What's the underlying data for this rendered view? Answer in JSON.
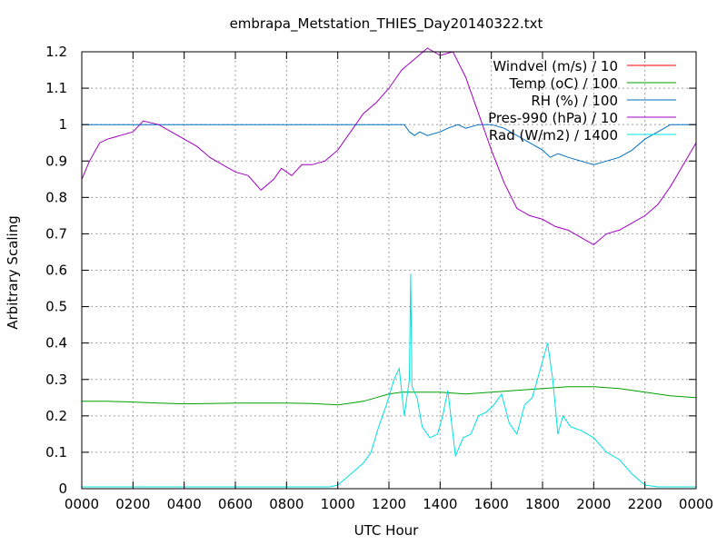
{
  "chart_data": {
    "type": "line",
    "title": "embrapa_Metstation_THIES_Day20140322.txt",
    "xlabel": "UTC Hour",
    "ylabel": "Arbitrary Scaling",
    "xlim": [
      0,
      24
    ],
    "ylim": [
      0,
      1.2
    ],
    "grid": true,
    "legend_position": "top-right",
    "x_ticks": [
      0,
      2,
      4,
      6,
      8,
      10,
      12,
      14,
      16,
      18,
      20,
      22,
      24
    ],
    "x_tick_labels": [
      "0000",
      "0200",
      "0400",
      "0600",
      "0800",
      "1000",
      "1200",
      "1400",
      "1600",
      "1800",
      "2000",
      "2200",
      "0000"
    ],
    "y_ticks": [
      0,
      0.1,
      0.2,
      0.3,
      0.4,
      0.5,
      0.6,
      0.7,
      0.8,
      0.9,
      1,
      1.1,
      1.2
    ],
    "y_tick_labels": [
      "0",
      "0.1",
      "0.2",
      "0.3",
      "0.4",
      "0.5",
      "0.6",
      "0.7",
      "0.8",
      "0.9",
      "1",
      "1.1",
      "1.2"
    ],
    "series": [
      {
        "name": "Windvel (m/s) / 10",
        "color": "#ff0000",
        "x": [],
        "y": []
      },
      {
        "name": "Temp (oC) / 100",
        "color": "#00a000",
        "x": [
          0,
          1,
          2,
          3,
          4,
          5,
          6,
          7,
          8,
          9,
          10,
          11,
          11.5,
          12,
          12.5,
          13,
          14,
          15,
          16,
          17,
          18,
          19,
          20,
          21,
          22,
          23,
          24
        ],
        "y": [
          0.24,
          0.24,
          0.238,
          0.235,
          0.233,
          0.234,
          0.235,
          0.235,
          0.235,
          0.234,
          0.23,
          0.24,
          0.25,
          0.26,
          0.265,
          0.265,
          0.265,
          0.26,
          0.265,
          0.27,
          0.275,
          0.28,
          0.28,
          0.275,
          0.265,
          0.255,
          0.25
        ]
      },
      {
        "name": "RH (%) / 100",
        "color": "#0070c0",
        "x": [
          0,
          12.6,
          12.8,
          13.0,
          13.2,
          13.5,
          14.0,
          14.3,
          14.7,
          15.0,
          15.5,
          16.0,
          16.5,
          17.0,
          17.5,
          18.0,
          18.3,
          18.6,
          19.0,
          19.5,
          20.0,
          20.5,
          21.0,
          21.5,
          22.0,
          22.5,
          23.0,
          24
        ],
        "y": [
          1,
          1,
          0.98,
          0.97,
          0.98,
          0.97,
          0.98,
          0.99,
          1.0,
          0.99,
          1.0,
          1.0,
          0.99,
          0.97,
          0.95,
          0.93,
          0.91,
          0.92,
          0.91,
          0.9,
          0.89,
          0.9,
          0.91,
          0.93,
          0.96,
          0.98,
          1.0,
          1.0
        ]
      },
      {
        "name": "Pres-990 (hPa) / 10",
        "color": "#a000c0",
        "x": [
          0,
          0.3,
          0.7,
          1.0,
          1.5,
          2.0,
          2.4,
          3.0,
          3.5,
          4.0,
          4.5,
          5.0,
          5.5,
          6.0,
          6.5,
          7.0,
          7.5,
          7.8,
          8.2,
          8.6,
          9.0,
          9.5,
          10.0,
          10.5,
          11.0,
          11.5,
          12.0,
          12.5,
          13.0,
          13.5,
          14.0,
          14.5,
          15.0,
          15.5,
          16.0,
          16.5,
          17.0,
          17.5,
          18.0,
          18.5,
          19.0,
          19.5,
          20.0,
          20.5,
          21.0,
          21.5,
          22.0,
          22.5,
          23.0,
          23.5,
          24
        ],
        "y": [
          0.85,
          0.9,
          0.95,
          0.96,
          0.97,
          0.98,
          1.01,
          1.0,
          0.98,
          0.96,
          0.94,
          0.91,
          0.89,
          0.87,
          0.86,
          0.82,
          0.85,
          0.88,
          0.86,
          0.89,
          0.89,
          0.9,
          0.93,
          0.98,
          1.03,
          1.06,
          1.1,
          1.15,
          1.18,
          1.21,
          1.19,
          1.2,
          1.13,
          1.03,
          0.93,
          0.84,
          0.77,
          0.75,
          0.74,
          0.72,
          0.71,
          0.69,
          0.67,
          0.7,
          0.71,
          0.73,
          0.75,
          0.78,
          0.83,
          0.89,
          0.95
        ]
      },
      {
        "name": "Rad (W/m2) / 1400",
        "color": "#00e0e0",
        "x": [
          0,
          9.7,
          10.0,
          10.5,
          11.0,
          11.3,
          11.6,
          11.9,
          12.2,
          12.4,
          12.6,
          12.8,
          12.85,
          12.9,
          13.1,
          13.3,
          13.6,
          13.9,
          14.1,
          14.3,
          14.6,
          14.9,
          15.2,
          15.5,
          15.8,
          16.1,
          16.4,
          16.7,
          17.0,
          17.3,
          17.6,
          17.8,
          18.0,
          18.2,
          18.4,
          18.6,
          18.8,
          19.1,
          19.5,
          20.0,
          20.5,
          21.0,
          21.5,
          22.0,
          22.5,
          23.0,
          24
        ],
        "y": [
          0.005,
          0.005,
          0.01,
          0.04,
          0.07,
          0.1,
          0.17,
          0.23,
          0.3,
          0.33,
          0.2,
          0.3,
          0.59,
          0.28,
          0.25,
          0.17,
          0.14,
          0.15,
          0.2,
          0.27,
          0.09,
          0.14,
          0.15,
          0.2,
          0.21,
          0.23,
          0.26,
          0.18,
          0.15,
          0.23,
          0.25,
          0.3,
          0.35,
          0.4,
          0.3,
          0.15,
          0.2,
          0.17,
          0.16,
          0.14,
          0.1,
          0.08,
          0.04,
          0.01,
          0.005,
          0.005,
          0.005
        ]
      }
    ]
  }
}
